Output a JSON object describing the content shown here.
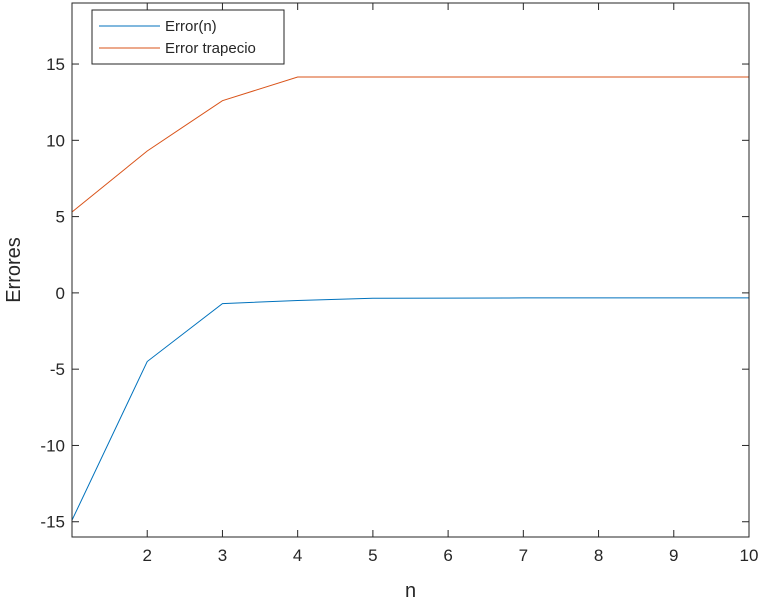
{
  "chart_data": {
    "type": "line",
    "title": "",
    "xlabel": "n",
    "ylabel": "Errores",
    "xlim": [
      1,
      10
    ],
    "ylim": [
      -16,
      19
    ],
    "xticks": [
      2,
      3,
      4,
      5,
      6,
      7,
      8,
      9,
      10
    ],
    "yticks": [
      -15,
      -10,
      -5,
      0,
      5,
      10,
      15
    ],
    "xtick_labels": [
      "2",
      "3",
      "4",
      "5",
      "6",
      "7",
      "8",
      "9",
      "10"
    ],
    "ytick_labels": [
      "-15",
      "-10",
      "-5",
      "0",
      "5",
      "10",
      "15"
    ],
    "grid": false,
    "legend_position": "top-left",
    "x": [
      1,
      2,
      3,
      4,
      5,
      6,
      7,
      8,
      9,
      10
    ],
    "series": [
      {
        "name": "Error(n)",
        "color": "#0072bd",
        "values": [
          -14.9,
          -4.5,
          -0.7,
          -0.5,
          -0.35,
          -0.34,
          -0.33,
          -0.33,
          -0.33,
          -0.33
        ]
      },
      {
        "name": "Error trapecio",
        "color": "#d95319",
        "values": [
          5.3,
          9.3,
          12.6,
          14.15,
          14.15,
          14.15,
          14.15,
          14.15,
          14.15,
          14.15
        ]
      }
    ]
  }
}
